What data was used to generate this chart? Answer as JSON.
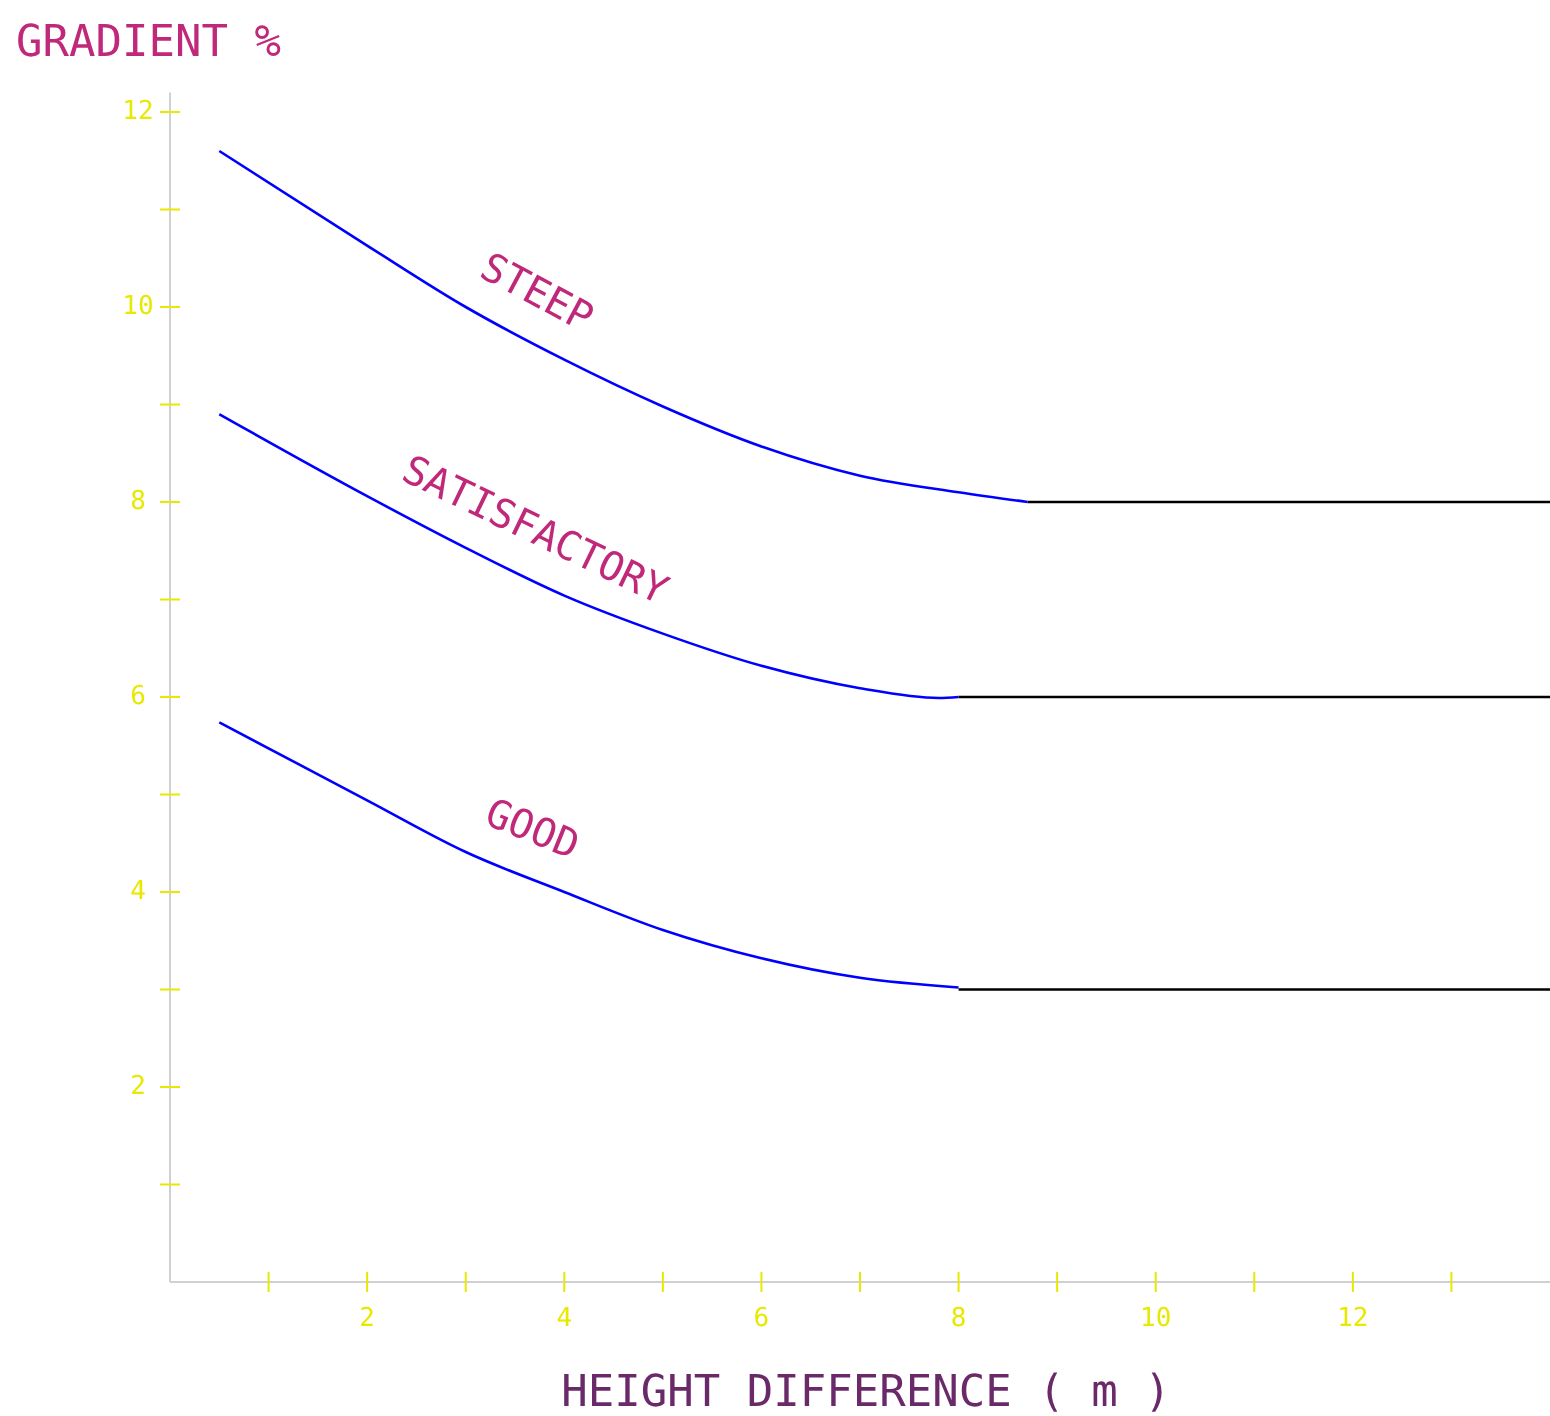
{
  "chart_data": {
    "type": "line",
    "ylabel": "GRADIENT %",
    "xlabel": "HEIGHT DIFFERENCE ( m )",
    "xlim": [
      0,
      14
    ],
    "ylim": [
      0,
      12.2
    ],
    "xticks": [
      {
        "value": 1,
        "label": null
      },
      2,
      {
        "value": 3,
        "label": null
      },
      4,
      {
        "value": 5,
        "label": null
      },
      6,
      {
        "value": 7,
        "label": null
      },
      8,
      {
        "value": 9,
        "label": null
      },
      10,
      {
        "value": 11,
        "label": null
      },
      12,
      {
        "value": 13,
        "label": null
      }
    ],
    "yticks": [
      {
        "value": 1,
        "label": null
      },
      2,
      {
        "value": 3,
        "label": null
      },
      4,
      {
        "value": 5,
        "label": null
      },
      6,
      {
        "value": 7,
        "label": null
      },
      8,
      {
        "value": 9,
        "label": null
      },
      10,
      {
        "value": 11,
        "label": null
      },
      12
    ],
    "grid": false,
    "marker": "none",
    "line_style": "solid",
    "series": [
      {
        "name": "STEEP",
        "color": "#0000ff",
        "x": [
          0.5,
          2,
          3,
          4,
          5,
          6,
          7,
          8,
          8.7
        ],
        "values": [
          11.6,
          10.63,
          10.0,
          9.46,
          8.98,
          8.57,
          8.27,
          8.1,
          8.0
        ]
      },
      {
        "color": "#000000",
        "x": [
          8.7,
          14
        ],
        "values": [
          8,
          8
        ]
      },
      {
        "name": "SATISFACTORY",
        "color": "#0000ff",
        "x": [
          0.5,
          2,
          3,
          4,
          5,
          6,
          7,
          7.8,
          8
        ],
        "values": [
          8.9,
          8.06,
          7.53,
          7.04,
          6.65,
          6.32,
          6.09,
          5.99,
          6.0
        ]
      },
      {
        "color": "#000000",
        "x": [
          8,
          14
        ],
        "values": [
          6,
          6
        ]
      },
      {
        "name": "GOOD",
        "color": "#0000ff",
        "x": [
          0.5,
          2,
          3,
          4,
          5,
          6,
          7,
          8
        ],
        "values": [
          5.74,
          4.94,
          4.41,
          4.0,
          3.61,
          3.32,
          3.12,
          3.02
        ]
      },
      {
        "color": "#000000",
        "x": [
          8,
          14
        ],
        "values": [
          3,
          3
        ]
      }
    ]
  }
}
